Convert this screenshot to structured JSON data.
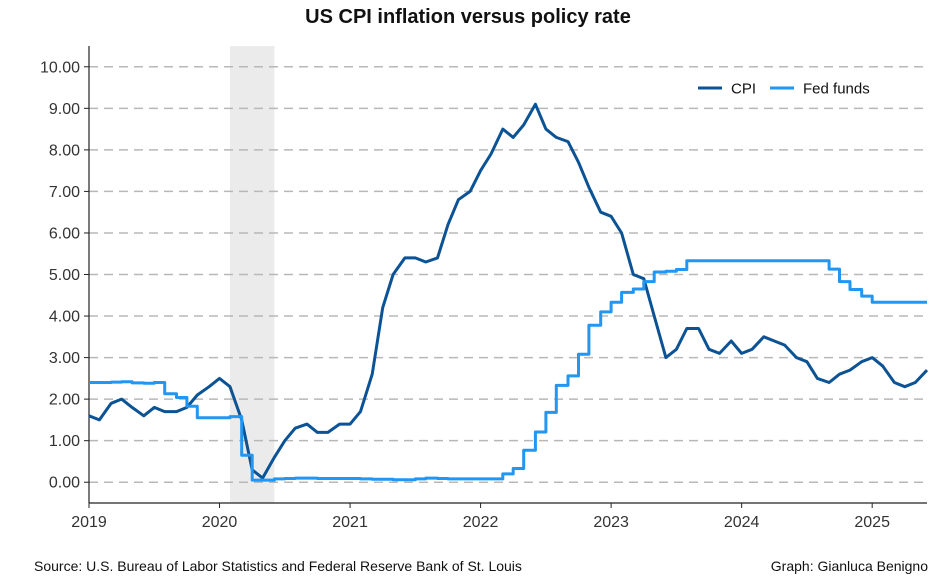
{
  "chart_data": {
    "type": "line",
    "title": "US CPI inflation versus policy rate",
    "xlabel": "",
    "ylabel": "",
    "xlim": [
      2019.0,
      2025.42
    ],
    "ylim": [
      -0.5,
      10.5
    ],
    "x_ticks": [
      2019,
      2020,
      2021,
      2022,
      2023,
      2024,
      2025
    ],
    "x_tick_labels": [
      "2019",
      "2020",
      "2021",
      "2022",
      "2023",
      "2024",
      "2025"
    ],
    "y_ticks": [
      0,
      1,
      2,
      3,
      4,
      5,
      6,
      7,
      8,
      9,
      10
    ],
    "y_tick_labels": [
      "0.00",
      "1.00",
      "2.00",
      "3.00",
      "4.00",
      "5.00",
      "6.00",
      "7.00",
      "8.00",
      "9.00",
      "10.00"
    ],
    "grid": "horizontal dashed",
    "legend_position": "top-right",
    "recession_shading": {
      "x_start": 2020.08,
      "x_end": 2020.42
    },
    "series": [
      {
        "name": "CPI",
        "color": "#0b5394",
        "step": false,
        "points": [
          [
            2019.0,
            1.6
          ],
          [
            2019.08,
            1.5
          ],
          [
            2019.17,
            1.9
          ],
          [
            2019.25,
            2.0
          ],
          [
            2019.33,
            1.8
          ],
          [
            2019.42,
            1.6
          ],
          [
            2019.5,
            1.8
          ],
          [
            2019.58,
            1.7
          ],
          [
            2019.67,
            1.7
          ],
          [
            2019.75,
            1.8
          ],
          [
            2019.83,
            2.1
          ],
          [
            2019.92,
            2.3
          ],
          [
            2020.0,
            2.5
          ],
          [
            2020.08,
            2.3
          ],
          [
            2020.17,
            1.5
          ],
          [
            2020.25,
            0.3
          ],
          [
            2020.33,
            0.1
          ],
          [
            2020.42,
            0.6
          ],
          [
            2020.5,
            1.0
          ],
          [
            2020.58,
            1.3
          ],
          [
            2020.67,
            1.4
          ],
          [
            2020.75,
            1.2
          ],
          [
            2020.83,
            1.2
          ],
          [
            2020.92,
            1.4
          ],
          [
            2021.0,
            1.4
          ],
          [
            2021.08,
            1.7
          ],
          [
            2021.17,
            2.6
          ],
          [
            2021.25,
            4.2
          ],
          [
            2021.33,
            5.0
          ],
          [
            2021.42,
            5.4
          ],
          [
            2021.5,
            5.4
          ],
          [
            2021.58,
            5.3
          ],
          [
            2021.67,
            5.4
          ],
          [
            2021.75,
            6.2
          ],
          [
            2021.83,
            6.8
          ],
          [
            2021.92,
            7.0
          ],
          [
            2022.0,
            7.5
          ],
          [
            2022.08,
            7.9
          ],
          [
            2022.17,
            8.5
          ],
          [
            2022.25,
            8.3
          ],
          [
            2022.33,
            8.6
          ],
          [
            2022.42,
            9.1
          ],
          [
            2022.5,
            8.5
          ],
          [
            2022.58,
            8.3
          ],
          [
            2022.67,
            8.2
          ],
          [
            2022.75,
            7.7
          ],
          [
            2022.83,
            7.1
          ],
          [
            2022.92,
            6.5
          ],
          [
            2023.0,
            6.4
          ],
          [
            2023.08,
            6.0
          ],
          [
            2023.17,
            5.0
          ],
          [
            2023.25,
            4.9
          ],
          [
            2023.33,
            4.0
          ],
          [
            2023.42,
            3.0
          ],
          [
            2023.5,
            3.2
          ],
          [
            2023.58,
            3.7
          ],
          [
            2023.67,
            3.7
          ],
          [
            2023.75,
            3.2
          ],
          [
            2023.83,
            3.1
          ],
          [
            2023.92,
            3.4
          ],
          [
            2024.0,
            3.1
          ],
          [
            2024.08,
            3.2
          ],
          [
            2024.17,
            3.5
          ],
          [
            2024.25,
            3.4
          ],
          [
            2024.33,
            3.3
          ],
          [
            2024.42,
            3.0
          ],
          [
            2024.5,
            2.9
          ],
          [
            2024.58,
            2.5
          ],
          [
            2024.67,
            2.4
          ],
          [
            2024.75,
            2.6
          ],
          [
            2024.83,
            2.7
          ],
          [
            2024.92,
            2.9
          ],
          [
            2025.0,
            3.0
          ],
          [
            2025.08,
            2.8
          ],
          [
            2025.17,
            2.4
          ],
          [
            2025.25,
            2.3
          ],
          [
            2025.33,
            2.4
          ],
          [
            2025.42,
            2.7
          ]
        ]
      },
      {
        "name": "Fed funds",
        "color": "#2196f3",
        "step": true,
        "points": [
          [
            2019.0,
            2.4
          ],
          [
            2019.08,
            2.4
          ],
          [
            2019.17,
            2.41
          ],
          [
            2019.25,
            2.42
          ],
          [
            2019.33,
            2.39
          ],
          [
            2019.42,
            2.38
          ],
          [
            2019.5,
            2.4
          ],
          [
            2019.58,
            2.13
          ],
          [
            2019.67,
            2.04
          ],
          [
            2019.75,
            1.83
          ],
          [
            2019.83,
            1.55
          ],
          [
            2019.92,
            1.55
          ],
          [
            2020.0,
            1.55
          ],
          [
            2020.08,
            1.58
          ],
          [
            2020.17,
            0.65
          ],
          [
            2020.25,
            0.05
          ],
          [
            2020.33,
            0.05
          ],
          [
            2020.42,
            0.08
          ],
          [
            2020.5,
            0.09
          ],
          [
            2020.58,
            0.1
          ],
          [
            2020.67,
            0.1
          ],
          [
            2020.75,
            0.09
          ],
          [
            2020.83,
            0.09
          ],
          [
            2020.92,
            0.09
          ],
          [
            2021.0,
            0.09
          ],
          [
            2021.08,
            0.08
          ],
          [
            2021.17,
            0.07
          ],
          [
            2021.25,
            0.07
          ],
          [
            2021.33,
            0.06
          ],
          [
            2021.42,
            0.06
          ],
          [
            2021.5,
            0.08
          ],
          [
            2021.58,
            0.1
          ],
          [
            2021.67,
            0.09
          ],
          [
            2021.75,
            0.08
          ],
          [
            2021.83,
            0.08
          ],
          [
            2021.92,
            0.08
          ],
          [
            2022.0,
            0.08
          ],
          [
            2022.08,
            0.08
          ],
          [
            2022.17,
            0.2
          ],
          [
            2022.25,
            0.33
          ],
          [
            2022.33,
            0.77
          ],
          [
            2022.42,
            1.21
          ],
          [
            2022.5,
            1.68
          ],
          [
            2022.58,
            2.33
          ],
          [
            2022.67,
            2.56
          ],
          [
            2022.75,
            3.08
          ],
          [
            2022.83,
            3.78
          ],
          [
            2022.92,
            4.1
          ],
          [
            2023.0,
            4.33
          ],
          [
            2023.08,
            4.57
          ],
          [
            2023.17,
            4.65
          ],
          [
            2023.25,
            4.83
          ],
          [
            2023.33,
            5.06
          ],
          [
            2023.42,
            5.08
          ],
          [
            2023.5,
            5.12
          ],
          [
            2023.58,
            5.33
          ],
          [
            2023.67,
            5.33
          ],
          [
            2023.75,
            5.33
          ],
          [
            2023.83,
            5.33
          ],
          [
            2023.92,
            5.33
          ],
          [
            2024.0,
            5.33
          ],
          [
            2024.08,
            5.33
          ],
          [
            2024.17,
            5.33
          ],
          [
            2024.25,
            5.33
          ],
          [
            2024.33,
            5.33
          ],
          [
            2024.42,
            5.33
          ],
          [
            2024.5,
            5.33
          ],
          [
            2024.58,
            5.33
          ],
          [
            2024.67,
            5.13
          ],
          [
            2024.75,
            4.83
          ],
          [
            2024.83,
            4.64
          ],
          [
            2024.92,
            4.48
          ],
          [
            2025.0,
            4.33
          ],
          [
            2025.08,
            4.33
          ],
          [
            2025.17,
            4.33
          ],
          [
            2025.25,
            4.33
          ],
          [
            2025.33,
            4.33
          ],
          [
            2025.42,
            4.33
          ]
        ]
      }
    ]
  },
  "footer": {
    "source": "Source: U.S. Bureau of Labor Statistics and Federal Reserve Bank of St. Louis",
    "credit": "Graph: Gianluca Benigno"
  }
}
